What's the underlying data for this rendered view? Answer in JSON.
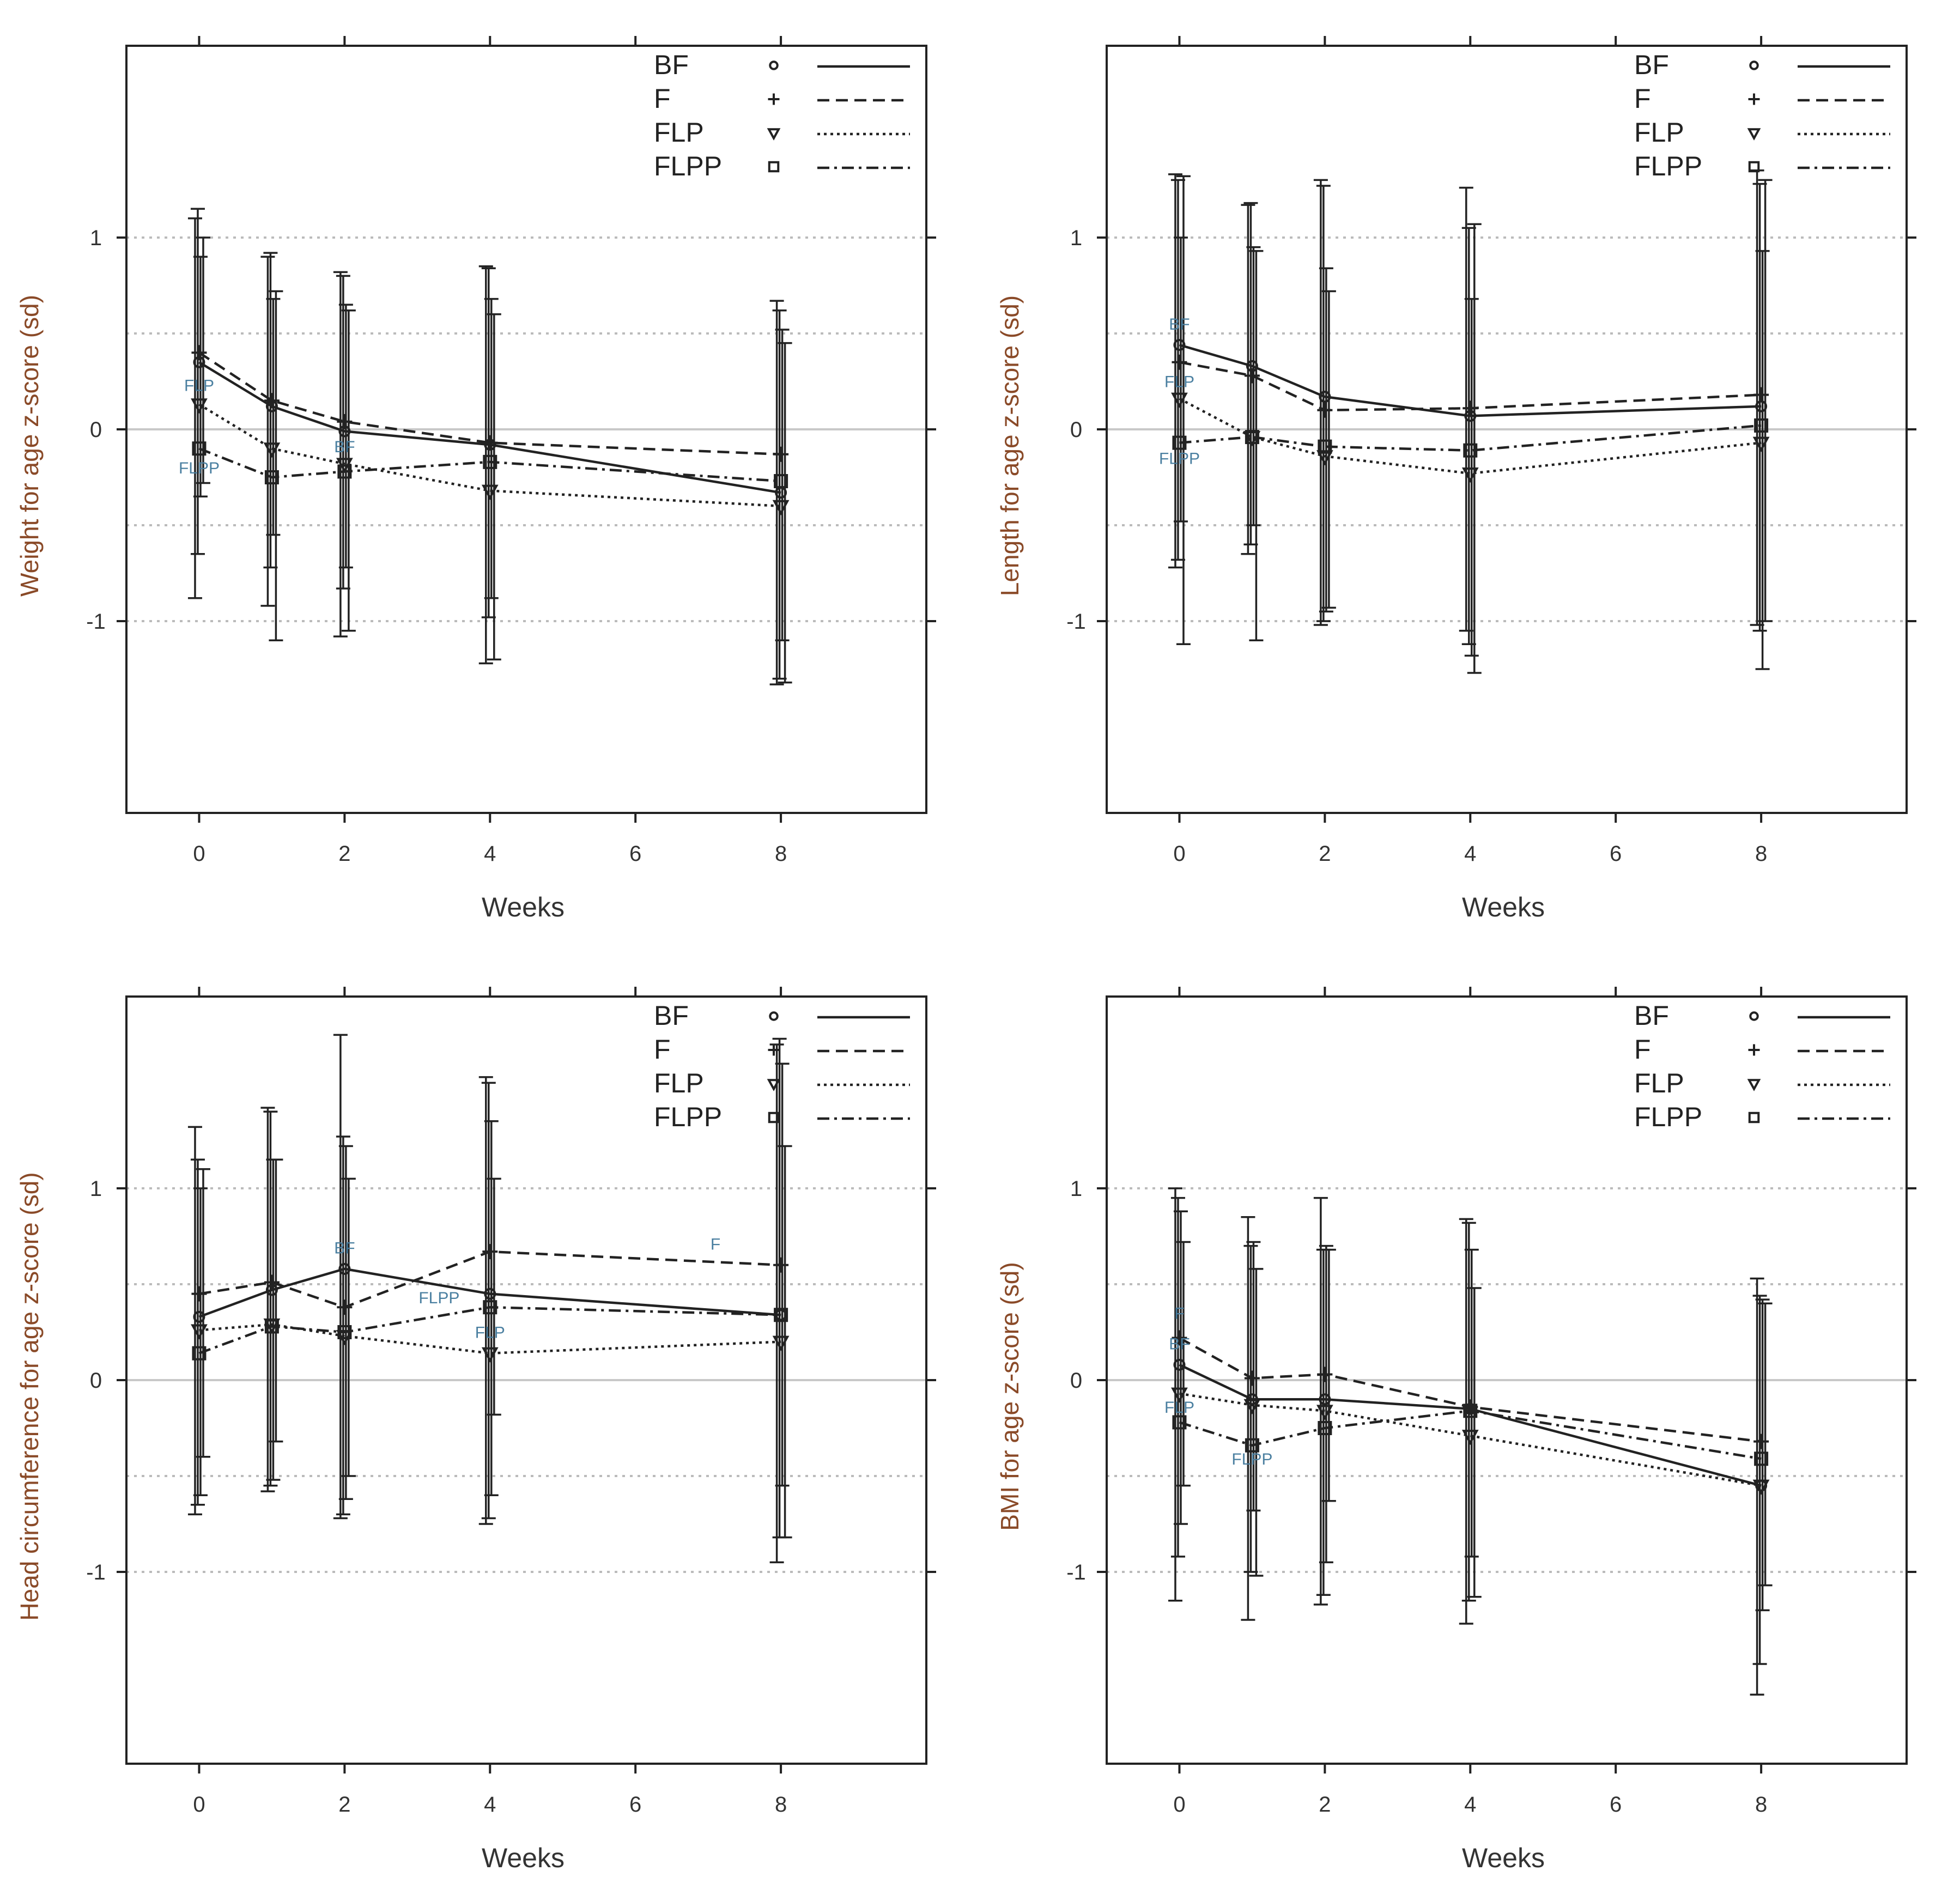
{
  "legend_entries": [
    "BF",
    "F",
    "FLP",
    "FLPP"
  ],
  "chart_data": [
    {
      "type": "line",
      "xlabel": "Weeks",
      "ylabel": "Weight for age z-score (sd)",
      "xlim": [
        -1,
        10
      ],
      "ylim": [
        -2,
        2
      ],
      "xticks": [
        0,
        2,
        4,
        6,
        8
      ],
      "yticks": [
        -1,
        0,
        1
      ],
      "reference_lines": [
        -1,
        -0.5,
        0.5,
        1
      ],
      "x": [
        0,
        1,
        2,
        4,
        8
      ],
      "series": [
        {
          "name": "BF",
          "symbol": "circle",
          "line": "solid",
          "values": [
            0.35,
            0.12,
            -0.01,
            -0.08,
            -0.33
          ],
          "lower": [
            -0.88,
            -0.92,
            -1.08,
            -1.22,
            -1.33
          ],
          "upper": [
            1.1,
            0.9,
            0.82,
            0.85,
            0.67
          ]
        },
        {
          "name": "F",
          "symbol": "plus",
          "line": "dashed",
          "values": [
            0.4,
            0.15,
            0.04,
            -0.07,
            -0.13
          ],
          "lower": [
            -0.65,
            -0.72,
            -0.83,
            -0.98,
            -1.3
          ],
          "upper": [
            1.15,
            0.92,
            0.8,
            0.84,
            0.62
          ]
        },
        {
          "name": "FLP",
          "symbol": "triangle-down",
          "line": "dotted",
          "values": [
            0.13,
            -0.1,
            -0.18,
            -0.32,
            -0.4
          ],
          "lower": [
            -0.35,
            -0.55,
            -0.72,
            -0.88,
            -1.1
          ],
          "upper": [
            0.9,
            0.68,
            0.65,
            0.68,
            0.52
          ]
        },
        {
          "name": "FLPP",
          "symbol": "square",
          "line": "dotdash",
          "values": [
            -0.1,
            -0.25,
            -0.22,
            -0.17,
            -0.27
          ],
          "lower": [
            -0.28,
            -1.1,
            -1.05,
            -1.2,
            -1.32
          ],
          "upper": [
            1.0,
            0.72,
            0.62,
            0.6,
            0.45
          ]
        }
      ],
      "annotations": [
        {
          "text": "FLP",
          "x": 0,
          "y": 0.2
        },
        {
          "text": "FLPP",
          "x": 0,
          "y": -0.23
        },
        {
          "text": "BF",
          "x": 2,
          "y": -0.12
        }
      ]
    },
    {
      "type": "line",
      "xlabel": "Weeks",
      "ylabel": "Length for age z-score (sd)",
      "xlim": [
        -1,
        10
      ],
      "ylim": [
        -2,
        2
      ],
      "xticks": [
        0,
        2,
        4,
        6,
        8
      ],
      "yticks": [
        -1,
        0,
        1
      ],
      "reference_lines": [
        -1,
        -0.5,
        0.5,
        1
      ],
      "x": [
        0,
        1,
        2,
        4,
        8
      ],
      "series": [
        {
          "name": "BF",
          "symbol": "circle",
          "line": "solid",
          "values": [
            0.44,
            0.33,
            0.17,
            0.07,
            0.12
          ],
          "lower": [
            -0.72,
            -0.65,
            -1.02,
            -1.05,
            -1.02
          ],
          "upper": [
            1.33,
            1.17,
            1.3,
            1.26,
            1.35
          ]
        },
        {
          "name": "F",
          "symbol": "plus",
          "line": "dashed",
          "values": [
            0.35,
            0.28,
            0.1,
            0.11,
            0.18
          ],
          "lower": [
            -0.68,
            -0.6,
            -1.0,
            -1.12,
            -1.05
          ],
          "upper": [
            1.3,
            1.18,
            1.27,
            1.05,
            1.28
          ]
        },
        {
          "name": "FLP",
          "symbol": "triangle-down",
          "line": "dotted",
          "values": [
            0.16,
            -0.04,
            -0.14,
            -0.23,
            -0.07
          ],
          "lower": [
            -0.48,
            -0.5,
            -0.95,
            -1.18,
            -1.25
          ],
          "upper": [
            1.0,
            0.95,
            0.84,
            0.68,
            0.93
          ]
        },
        {
          "name": "FLPP",
          "symbol": "square",
          "line": "dotdash",
          "values": [
            -0.07,
            -0.04,
            -0.09,
            -0.11,
            0.02
          ],
          "lower": [
            -1.12,
            -1.1,
            -0.93,
            -1.27,
            -1.0
          ],
          "upper": [
            1.32,
            0.93,
            0.72,
            1.07,
            1.3
          ]
        }
      ],
      "annotations": [
        {
          "text": "BF",
          "x": 0,
          "y": 0.52
        },
        {
          "text": "FLP",
          "x": 0,
          "y": 0.22
        },
        {
          "text": "FLPP",
          "x": 0,
          "y": -0.18
        }
      ]
    },
    {
      "type": "line",
      "xlabel": "Weeks",
      "ylabel": "Head circumference for age z-score (sd)",
      "xlim": [
        -1,
        10
      ],
      "ylim": [
        -2,
        2
      ],
      "xticks": [
        0,
        2,
        4,
        6,
        8
      ],
      "yticks": [
        -1,
        0,
        1
      ],
      "reference_lines": [
        -1,
        -0.5,
        0.5,
        1
      ],
      "x": [
        0,
        1,
        2,
        4,
        8
      ],
      "series": [
        {
          "name": "BF",
          "symbol": "circle",
          "line": "solid",
          "values": [
            0.33,
            0.47,
            0.58,
            0.45,
            0.34
          ],
          "lower": [
            -0.7,
            -0.58,
            -0.72,
            -0.75,
            -0.95
          ],
          "upper": [
            1.32,
            1.42,
            1.8,
            1.58,
            1.75
          ]
        },
        {
          "name": "F",
          "symbol": "plus",
          "line": "dashed",
          "values": [
            0.45,
            0.51,
            0.38,
            0.67,
            0.6
          ],
          "lower": [
            -0.65,
            -0.55,
            -0.7,
            -0.72,
            -0.82
          ],
          "upper": [
            1.15,
            1.4,
            1.27,
            1.55,
            1.78
          ]
        },
        {
          "name": "FLP",
          "symbol": "triangle-down",
          "line": "dotted",
          "values": [
            0.26,
            0.29,
            0.23,
            0.14,
            0.2
          ],
          "lower": [
            -0.6,
            -0.52,
            -0.62,
            -0.6,
            -0.55
          ],
          "upper": [
            1.0,
            1.15,
            1.22,
            1.35,
            1.65
          ]
        },
        {
          "name": "FLPP",
          "symbol": "square",
          "line": "dotdash",
          "values": [
            0.14,
            0.28,
            0.25,
            0.38,
            0.34
          ],
          "lower": [
            -0.4,
            -0.32,
            -0.5,
            -0.18,
            -0.82
          ],
          "upper": [
            1.1,
            1.15,
            1.05,
            1.05,
            1.22
          ]
        }
      ],
      "annotations": [
        {
          "text": "BF",
          "x": 2,
          "y": 0.66
        },
        {
          "text": "FLPP",
          "x": 3.3,
          "y": 0.4
        },
        {
          "text": "FLP",
          "x": 4,
          "y": 0.22
        },
        {
          "text": "F",
          "x": 7.1,
          "y": 0.68
        }
      ]
    },
    {
      "type": "line",
      "xlabel": "Weeks",
      "ylabel": "BMI for age z-score (sd)",
      "xlim": [
        -1,
        10
      ],
      "ylim": [
        -2,
        2
      ],
      "xticks": [
        0,
        2,
        4,
        6,
        8
      ],
      "yticks": [
        -1,
        0,
        1
      ],
      "reference_lines": [
        -1,
        -0.5,
        0.5,
        1
      ],
      "x": [
        0,
        1,
        2,
        4,
        8
      ],
      "series": [
        {
          "name": "BF",
          "symbol": "circle",
          "line": "solid",
          "values": [
            0.08,
            -0.1,
            -0.1,
            -0.15,
            -0.55
          ],
          "lower": [
            -1.15,
            -1.25,
            -1.17,
            -1.27,
            -1.64
          ],
          "upper": [
            1.0,
            0.85,
            0.95,
            0.84,
            0.53
          ]
        },
        {
          "name": "F",
          "symbol": "plus",
          "line": "dashed",
          "values": [
            0.22,
            0.01,
            0.03,
            -0.14,
            -0.32
          ],
          "lower": [
            -0.92,
            -1.0,
            -1.12,
            -1.15,
            -1.48
          ],
          "upper": [
            0.95,
            0.7,
            0.68,
            0.82,
            0.44
          ]
        },
        {
          "name": "FLP",
          "symbol": "triangle-down",
          "line": "dotted",
          "values": [
            -0.07,
            -0.13,
            -0.16,
            -0.29,
            -0.55
          ],
          "lower": [
            -0.75,
            -0.68,
            -0.95,
            -0.92,
            -1.2
          ],
          "upper": [
            0.88,
            0.72,
            0.7,
            0.68,
            0.42
          ]
        },
        {
          "name": "FLPP",
          "symbol": "square",
          "line": "dotdash",
          "values": [
            -0.22,
            -0.34,
            -0.25,
            -0.16,
            -0.41
          ],
          "lower": [
            -0.55,
            -1.02,
            -0.63,
            -1.13,
            -1.07
          ],
          "upper": [
            0.72,
            0.58,
            0.68,
            0.48,
            0.4
          ]
        }
      ],
      "annotations": [
        {
          "text": "F",
          "x": 0,
          "y": 0.32
        },
        {
          "text": "BF",
          "x": 0,
          "y": 0.16
        },
        {
          "text": "FLP",
          "x": 0,
          "y": -0.17
        },
        {
          "text": "FLPP",
          "x": 1,
          "y": -0.44
        }
      ]
    }
  ]
}
